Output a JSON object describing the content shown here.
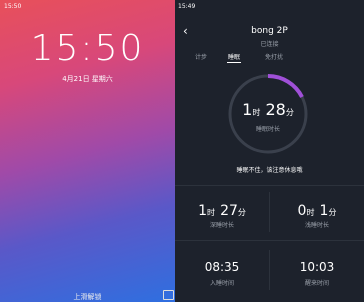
{
  "left": {
    "status_time": "15:50",
    "time": "15:50",
    "date": "4月21日 星期六",
    "unlock_hint": "上滑解锁"
  },
  "right": {
    "status_time": "15:49",
    "title": "bong 2P",
    "subtitle": "已连接",
    "tabs": [
      "计步",
      "睡眠",
      "免打扰"
    ],
    "ring": {
      "hours": "1",
      "hour_unit": "时",
      "minutes": "28",
      "minute_unit": "分",
      "label": "睡眠时长"
    },
    "message": "睡眠不佳，该注意休息哦",
    "stats": [
      {
        "hours": "1",
        "hour_unit": "时",
        "minutes": "27",
        "minute_unit": "分",
        "label": "深睡时长"
      },
      {
        "hours": "0",
        "hour_unit": "时",
        "minutes": "1",
        "minute_unit": "分",
        "label": "浅睡时长"
      }
    ],
    "times": [
      {
        "value": "08:35",
        "label": "入睡时间"
      },
      {
        "value": "10:03",
        "label": "醒来时间"
      }
    ]
  }
}
